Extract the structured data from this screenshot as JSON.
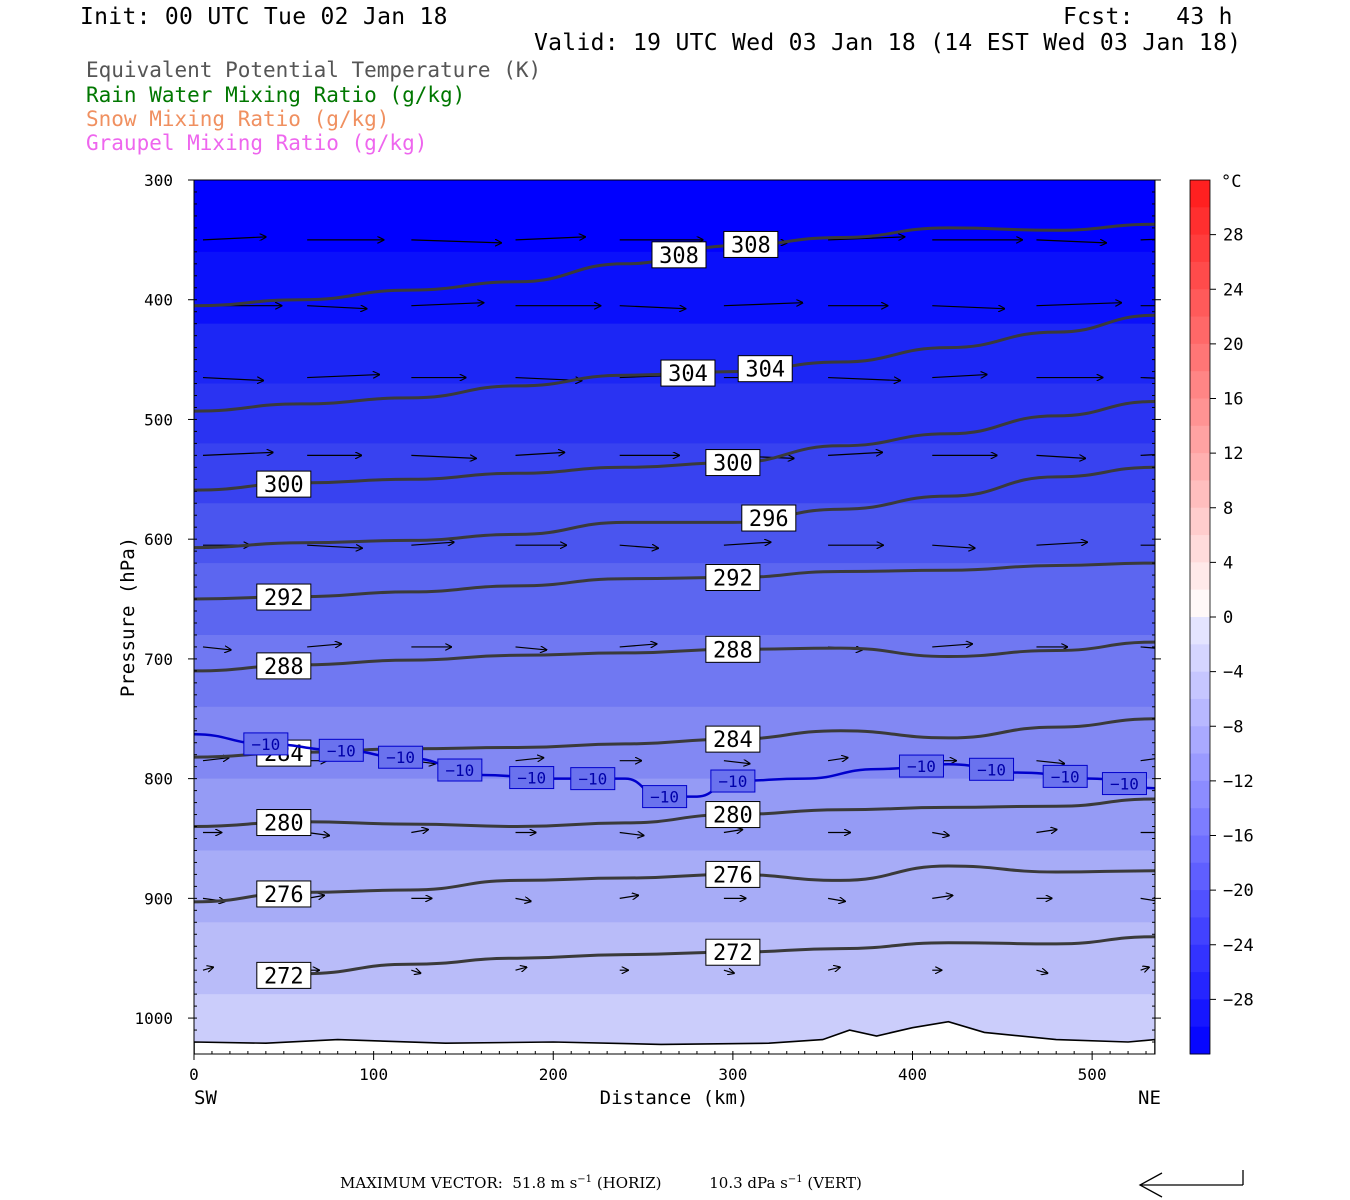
{
  "header": {
    "init": "Init: 00 UTC Tue 02 Jan 18",
    "fcst": "Fcst:   43 h",
    "valid": "Valid: 19 UTC Wed 03 Jan 18 (14 EST Wed 03 Jan 18)"
  },
  "legend": [
    {
      "label": "Equivalent Potential Temperature (K)",
      "color": "#555555"
    },
    {
      "label": "Rain Water Mixing Ratio (g/kg)",
      "color": "#007700"
    },
    {
      "label": "Snow Mixing Ratio (g/kg)",
      "color": "#f09060"
    },
    {
      "label": "Graupel Mixing Ratio (g/kg)",
      "color": "#ee66ee"
    }
  ],
  "chart_data": {
    "type": "heatmap",
    "xlabel": "Distance (km)",
    "ylabel": "Pressure (hPa)",
    "xlim": [
      0,
      535
    ],
    "ylim": [
      1030,
      300
    ],
    "x_ticks": [
      "0",
      "100",
      "200",
      "300",
      "400",
      "500"
    ],
    "y_ticks": [
      "300",
      "400",
      "500",
      "600",
      "700",
      "800",
      "900",
      "1000"
    ],
    "left_end_label": "SW",
    "right_end_label": "NE",
    "colorbar": {
      "unit": "°C",
      "tick_labels": [
        "28",
        "24",
        "20",
        "16",
        "12",
        "8",
        "4",
        "0",
        "−4",
        "−8",
        "−12",
        "−16",
        "−20",
        "−24",
        "−28"
      ],
      "tick_values": [
        28,
        24,
        20,
        16,
        12,
        8,
        4,
        0,
        -4,
        -8,
        -12,
        -16,
        -20,
        -24,
        -28
      ],
      "range": [
        -32,
        32
      ]
    },
    "temperature_bands": [
      {
        "p_top": 300,
        "p_bot": 360,
        "color": "#0000ff"
      },
      {
        "p_top": 360,
        "p_bot": 420,
        "color": "#0a10fb"
      },
      {
        "p_top": 420,
        "p_bot": 470,
        "color": "#1c26f5"
      },
      {
        "p_top": 470,
        "p_bot": 520,
        "color": "#2a33f2"
      },
      {
        "p_top": 520,
        "p_bot": 570,
        "color": "#3842f0"
      },
      {
        "p_top": 570,
        "p_bot": 620,
        "color": "#4a55ef"
      },
      {
        "p_top": 620,
        "p_bot": 680,
        "color": "#5c66f0"
      },
      {
        "p_top": 680,
        "p_bot": 740,
        "color": "#7078f2"
      },
      {
        "p_top": 740,
        "p_bot": 800,
        "color": "#8288f3"
      },
      {
        "p_top": 800,
        "p_bot": 860,
        "color": "#959bf5"
      },
      {
        "p_top": 860,
        "p_bot": 920,
        "color": "#a7acf7"
      },
      {
        "p_top": 920,
        "p_bot": 980,
        "color": "#b9bcf9"
      },
      {
        "p_top": 980,
        "p_bot": 1030,
        "color": "#cbcdfb"
      }
    ],
    "theta_e_contours": [
      {
        "level": 308,
        "labels": [
          "308",
          "308"
        ],
        "x": [
          0,
          60,
          120,
          180,
          240,
          300,
          360,
          420,
          480,
          535
        ],
        "p": [
          405,
          400,
          392,
          385,
          370,
          355,
          348,
          340,
          342,
          337
        ]
      },
      {
        "level": 304,
        "labels": [
          "304",
          "304"
        ],
        "x": [
          0,
          60,
          120,
          180,
          240,
          300,
          360,
          420,
          480,
          535
        ],
        "p": [
          493,
          487,
          482,
          472,
          463,
          460,
          452,
          440,
          427,
          413
        ]
      },
      {
        "level": 300,
        "labels": [
          "300",
          "300"
        ],
        "x": [
          0,
          60,
          120,
          180,
          240,
          300,
          360,
          420,
          480,
          535
        ],
        "p": [
          559,
          553,
          550,
          545,
          540,
          536,
          522,
          512,
          497,
          485
        ]
      },
      {
        "level": 296,
        "labels": [
          "296"
        ],
        "x": [
          0,
          60,
          120,
          180,
          240,
          300,
          360,
          420,
          480,
          535
        ],
        "p": [
          607,
          603,
          601,
          596,
          586,
          586,
          575,
          564,
          548,
          540
        ]
      },
      {
        "level": 292,
        "labels": [
          "292",
          "292"
        ],
        "x": [
          0,
          60,
          120,
          180,
          240,
          300,
          360,
          420,
          480,
          535
        ],
        "p": [
          650,
          648,
          644,
          639,
          633,
          632,
          627,
          626,
          622,
          620
        ]
      },
      {
        "level": 288,
        "labels": [
          "288",
          "288"
        ],
        "x": [
          0,
          60,
          120,
          180,
          240,
          300,
          360,
          420,
          480,
          535
        ],
        "p": [
          710,
          705,
          701,
          697,
          695,
          692,
          691,
          698,
          693,
          686
        ]
      },
      {
        "level": 284,
        "labels": [
          "284",
          "284"
        ],
        "x": [
          0,
          60,
          120,
          180,
          240,
          300,
          360,
          420,
          480,
          535
        ],
        "p": [
          782,
          778,
          775,
          774,
          771,
          767,
          760,
          766,
          757,
          750
        ]
      },
      {
        "level": 280,
        "labels": [
          "280",
          "280"
        ],
        "x": [
          0,
          60,
          120,
          180,
          240,
          300,
          360,
          420,
          480,
          535
        ],
        "p": [
          840,
          836,
          838,
          840,
          837,
          830,
          826,
          824,
          823,
          817
        ]
      },
      {
        "level": 276,
        "labels": [
          "276",
          "276"
        ],
        "x": [
          0,
          60,
          120,
          180,
          240,
          300,
          360,
          420,
          480,
          535
        ],
        "p": [
          903,
          895,
          893,
          885,
          883,
          880,
          885,
          873,
          878,
          877
        ]
      },
      {
        "level": 272,
        "labels": [
          "272",
          "272"
        ],
        "x": [
          60,
          120,
          180,
          240,
          300,
          360,
          420,
          480,
          535
        ],
        "p": [
          963,
          955,
          950,
          947,
          945,
          942,
          937,
          938,
          932
        ]
      }
    ],
    "isotherm_minus10": {
      "label": "−10",
      "x": [
        0,
        40,
        80,
        120,
        160,
        200,
        240,
        260,
        280,
        300,
        340,
        380,
        420,
        460,
        500,
        535
      ],
      "p": [
        763,
        771,
        776,
        783,
        797,
        800,
        800,
        815,
        815,
        802,
        800,
        792,
        788,
        795,
        800,
        808
      ]
    },
    "wind_vectors_note": "Horizontal wind arrows pointing from SW toward NE, decreasing in length toward the surface",
    "max_vector": {
      "label": "MAXIMUM VECTOR:",
      "horiz_value": "51.8",
      "horiz_unit": "m s",
      "horiz_exp": "−1",
      "horiz_tag": "(HORIZ)",
      "vert_value": "10.3",
      "vert_unit": "dPa s",
      "vert_exp": "−1",
      "vert_tag": "(VERT)"
    }
  }
}
